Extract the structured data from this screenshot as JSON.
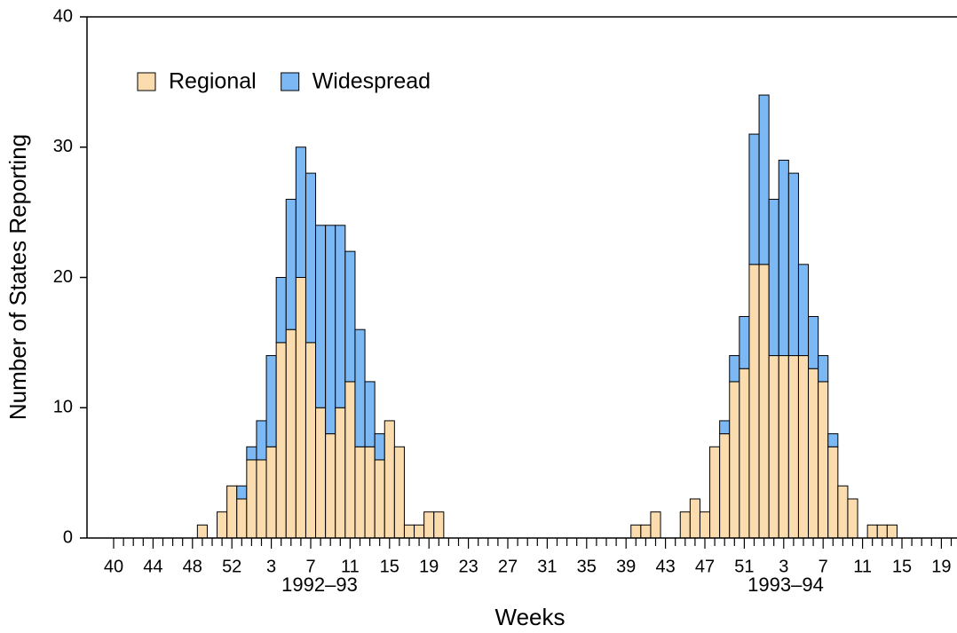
{
  "chart_data": {
    "type": "stacked-bar",
    "x_label": "Weeks",
    "y_label": "Number of States Reporting",
    "annotations": [
      "1992–93",
      "1993–94"
    ],
    "categories": [
      "40",
      null,
      null,
      null,
      "44",
      null,
      null,
      null,
      "48",
      null,
      null,
      null,
      "52",
      null,
      null,
      null,
      "3",
      null,
      null,
      null,
      "7",
      null,
      null,
      null,
      "11",
      null,
      null,
      null,
      "15",
      null,
      null,
      null,
      "19",
      null,
      null,
      null,
      "23",
      null,
      null,
      null,
      "27",
      null,
      null,
      null,
      "31",
      null,
      null,
      null,
      "35",
      null,
      null,
      null,
      "39",
      null,
      null,
      null,
      "43",
      null,
      null,
      null,
      "47",
      null,
      null,
      null,
      "51",
      null,
      null,
      null,
      "3",
      null,
      null,
      null,
      "7",
      null,
      null,
      null,
      "11",
      null,
      null,
      null,
      "15",
      null,
      null,
      null,
      "19",
      null
    ],
    "series": [
      {
        "name": "Regional",
        "color": "#fbdcaf",
        "values": [
          0,
          0,
          0,
          0,
          0,
          0,
          0,
          0,
          0,
          1,
          0,
          2,
          4,
          3,
          6,
          6,
          7,
          15,
          16,
          20,
          15,
          10,
          8,
          10,
          12,
          7,
          7,
          6,
          9,
          7,
          1,
          1,
          2,
          2,
          0,
          0,
          0,
          0,
          0,
          0,
          0,
          0,
          0,
          0,
          0,
          0,
          0,
          0,
          0,
          0,
          0,
          0,
          0,
          1,
          1,
          2,
          0,
          0,
          2,
          3,
          2,
          7,
          8,
          12,
          13,
          21,
          21,
          14,
          14,
          14,
          14,
          13,
          12,
          7,
          4,
          3,
          0,
          1,
          1,
          1,
          0,
          0,
          0,
          0,
          0,
          0
        ]
      },
      {
        "name": "Widespread",
        "color": "#7cb9f4",
        "values": [
          0,
          0,
          0,
          0,
          0,
          0,
          0,
          0,
          0,
          0,
          0,
          0,
          0,
          1,
          1,
          3,
          7,
          5,
          10,
          10,
          13,
          14,
          16,
          14,
          10,
          9,
          5,
          2,
          0,
          0,
          0,
          0,
          0,
          0,
          0,
          0,
          0,
          0,
          0,
          0,
          0,
          0,
          0,
          0,
          0,
          0,
          0,
          0,
          0,
          0,
          0,
          0,
          0,
          0,
          0,
          0,
          0,
          0,
          0,
          0,
          0,
          0,
          1,
          2,
          4,
          10,
          13,
          12,
          15,
          14,
          7,
          4,
          2,
          1,
          0,
          0,
          0,
          0,
          0,
          0,
          0,
          0,
          0,
          0,
          0,
          0
        ]
      }
    ],
    "ylim": [
      0,
      40
    ],
    "yticks": [
      0,
      10,
      20,
      30,
      40
    ]
  }
}
